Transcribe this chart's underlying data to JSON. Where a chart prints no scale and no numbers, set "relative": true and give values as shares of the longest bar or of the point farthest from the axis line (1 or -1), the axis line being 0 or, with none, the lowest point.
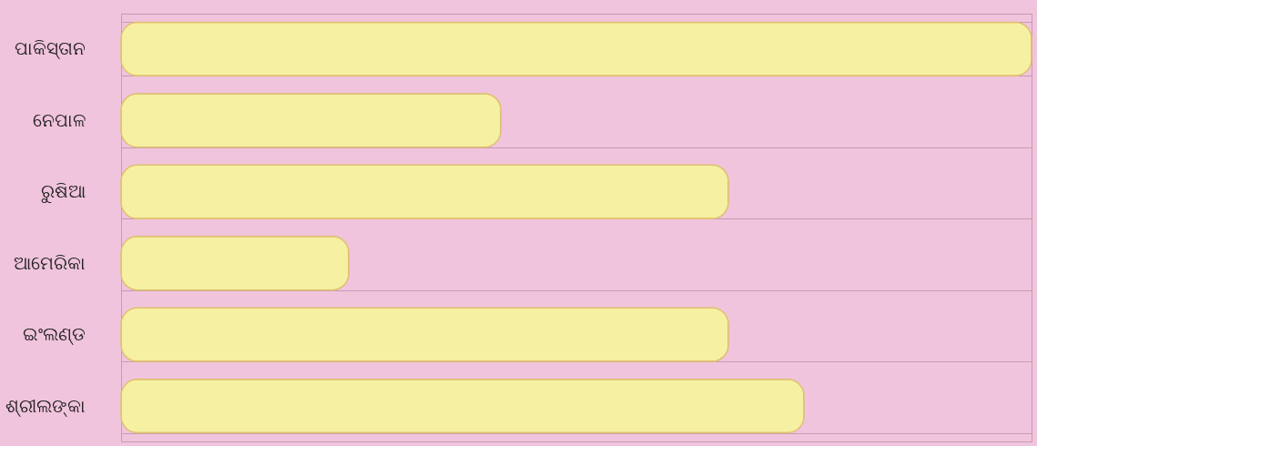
{
  "chart_data": {
    "type": "bar",
    "orientation": "horizontal",
    "relative": true,
    "categories": [
      "ପାକିସ୍ତାନ",
      "ନେପାଳ",
      "ରୁଷିଆ",
      "ଆମେରିକା",
      "ଇଂଲଣ୍ଡ",
      "ଶ୍ରୀଲଙ୍କା"
    ],
    "values": [
      1,
      0.417,
      0.667,
      0.25,
      0.667,
      0.75
    ],
    "color": "#f6f0a2",
    "grid": "y"
  }
}
